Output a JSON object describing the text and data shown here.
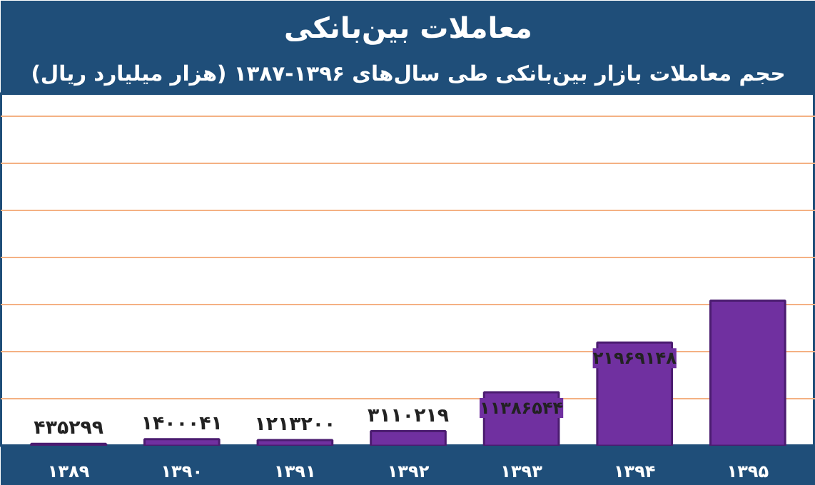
{
  "chart_data": {
    "type": "bar",
    "title": "معاملات بین‌بانکی",
    "subtitle": "حجم معاملات بازار بین‌بانکی طی سال‌های ۱۳۹۶-۱۳۸۷ (هزار میلیارد ریال)",
    "categories": [
      "۱۳۸۹",
      "۱۳۹۰",
      "۱۳۹۱",
      "۱۳۹۲",
      "۱۳۹۳",
      "۱۳۹۴",
      "۱۳۹۵"
    ],
    "values": [
      435299,
      1400041,
      1213200,
      3110219,
      11386544,
      21969148,
      30900000
    ],
    "value_labels": [
      "۴۳۵۲۹۹",
      "۱۴۰۰۰۴۱",
      "۱۲۱۳۲۰۰",
      "۳۱۱۰۲۱۹",
      "۱۱۳۸۶۵۴۴",
      "۲۱۹۶۹۱۴۸",
      null
    ],
    "color": "#7030a0",
    "ylim": [
      0,
      75000000
    ],
    "yticks": [
      {
        "value": 10000000,
        "label": null
      },
      {
        "value": 20000000,
        "label": null
      },
      {
        "value": 30000000,
        "label": null
      },
      {
        "value": 40000000,
        "label": null
      },
      {
        "value": 50000000,
        "label": null
      },
      {
        "value": 60000000,
        "label": null
      },
      {
        "value": 70000000,
        "label": null
      }
    ],
    "grid": "y",
    "tick_labels": "x"
  }
}
